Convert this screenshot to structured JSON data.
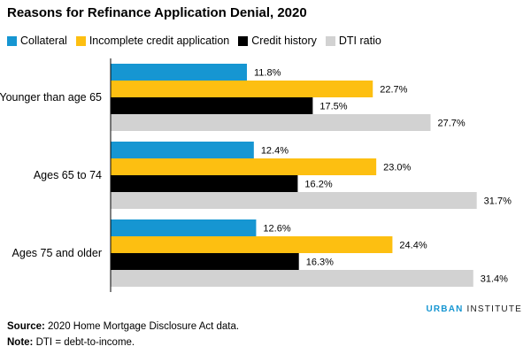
{
  "chart_data": {
    "type": "bar",
    "orientation": "horizontal",
    "title": "Reasons for Refinance Application Denial, 2020",
    "categories": [
      "Younger than age 65",
      "Ages 65 to 74",
      "Ages 75 and older"
    ],
    "series": [
      {
        "name": "Collateral",
        "color": "#1696d2",
        "values": [
          11.8,
          12.4,
          12.6
        ],
        "labels": [
          "11.8%",
          "12.4%",
          "12.6%"
        ]
      },
      {
        "name": "Incomplete credit application",
        "color": "#fdbf11",
        "values": [
          22.7,
          23.0,
          24.4
        ],
        "labels": [
          "22.7%",
          "23.0%",
          "24.4%"
        ]
      },
      {
        "name": "Credit history",
        "color": "#000000",
        "values": [
          17.5,
          16.2,
          16.3
        ],
        "labels": [
          "17.5%",
          "16.2%",
          "16.3%"
        ]
      },
      {
        "name": "DTI ratio",
        "color": "#d2d2d2",
        "values": [
          27.7,
          31.7,
          31.4
        ],
        "labels": [
          "27.7%",
          "31.7%",
          "31.4%"
        ]
      }
    ],
    "xlim": [
      0,
      35
    ],
    "grid": false,
    "legend": "top"
  },
  "brand": {
    "bold": "URBAN",
    "thin": "INSTITUTE"
  },
  "source": {
    "label": "Source:",
    "text": "2020 Home Mortgage Disclosure Act data."
  },
  "note": {
    "label": "Note:",
    "text": "DTI = debt-to-income."
  }
}
